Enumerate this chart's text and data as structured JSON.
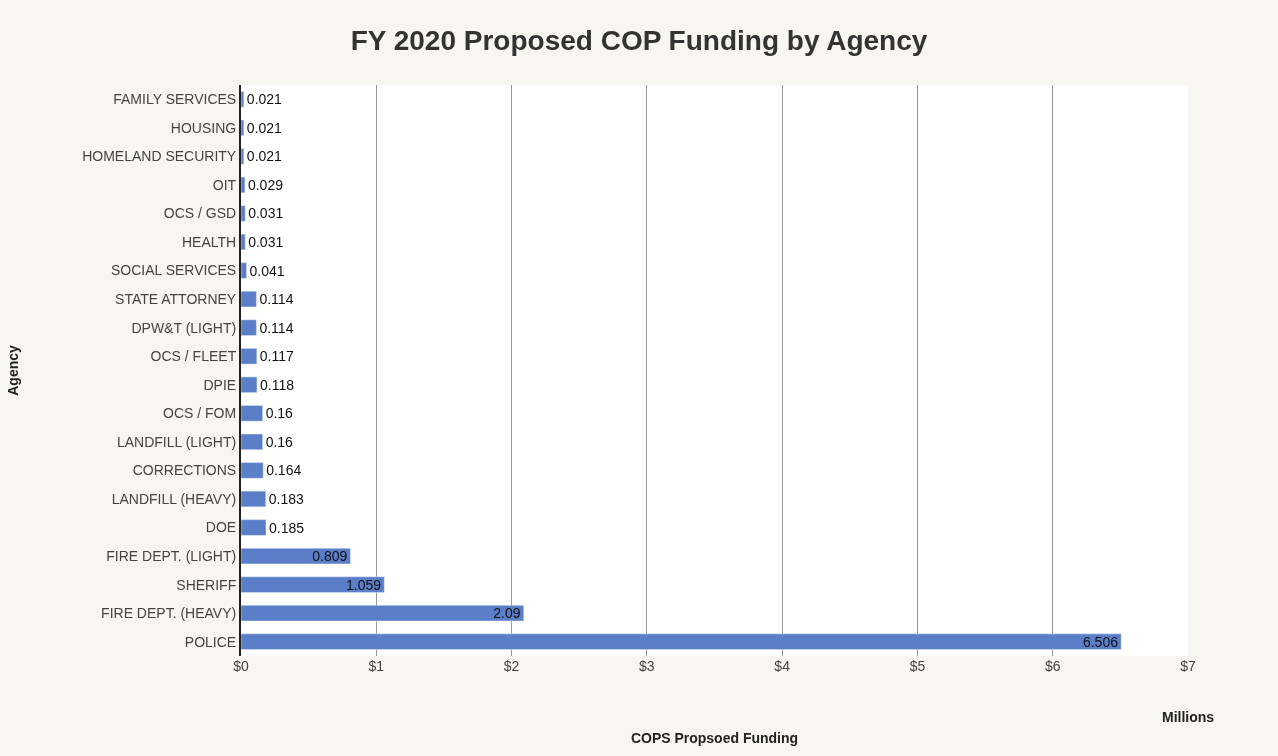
{
  "chart_data": {
    "type": "bar",
    "orientation": "horizontal",
    "title": "FY 2020 Proposed COP Funding by Agency",
    "xlabel": "COPS Propsoed Funding",
    "ylabel": "Agency",
    "categories": [
      "FAMILY SERVICES",
      "HOUSING",
      "HOMELAND SECURITY",
      "OIT",
      "OCS / GSD",
      "HEALTH",
      "SOCIAL SERVICES",
      "STATE ATTORNEY",
      "DPW&T (LIGHT)",
      "OCS / FLEET",
      "DPIE",
      "OCS / FOM",
      "LANDFILL (LIGHT)",
      "CORRECTIONS",
      "LANDFILL (HEAVY)",
      "DOE",
      "FIRE DEPT. (LIGHT)",
      "SHERIFF",
      "FIRE DEPT. (HEAVY)",
      "POLICE"
    ],
    "values": [
      0.021,
      0.021,
      0.021,
      0.029,
      0.031,
      0.031,
      0.041,
      0.114,
      0.114,
      0.117,
      0.118,
      0.16,
      0.16,
      0.164,
      0.183,
      0.185,
      0.809,
      1.059,
      2.09,
      6.506
    ],
    "color": "#5b7ec8",
    "xlim": [
      0,
      7
    ],
    "xticks": [
      {
        "value": 0,
        "label": "$0"
      },
      {
        "value": 1,
        "label": "$1"
      },
      {
        "value": 2,
        "label": "$2"
      },
      {
        "value": 3,
        "label": "$3"
      },
      {
        "value": 4,
        "label": "$4"
      },
      {
        "value": 5,
        "label": "$5"
      },
      {
        "value": 6,
        "label": "$6"
      },
      {
        "value": 7,
        "label": "$7"
      }
    ],
    "grid": "x",
    "data_labels": true,
    "annotations": [
      "Millions"
    ]
  }
}
